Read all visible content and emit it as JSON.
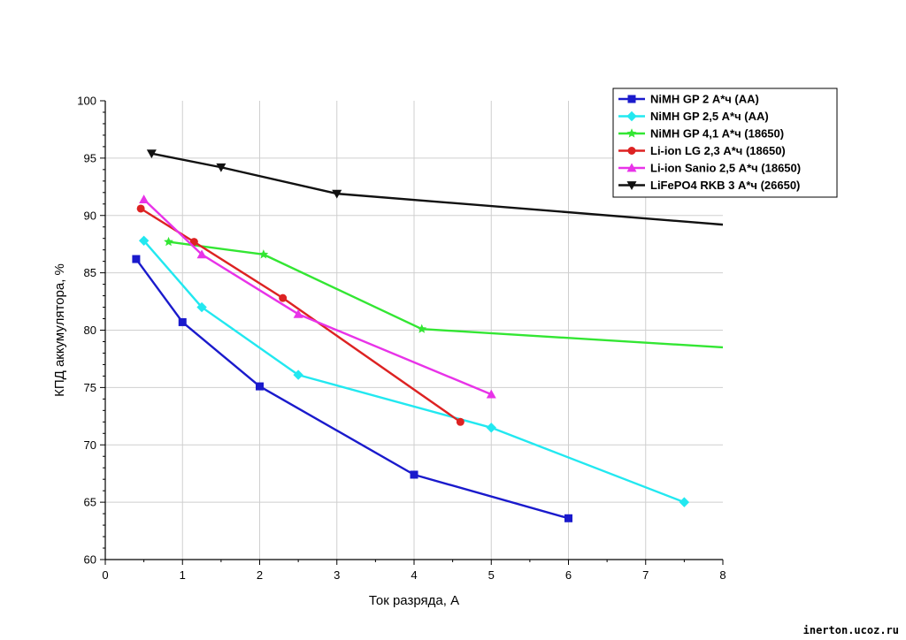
{
  "chart_data": {
    "type": "line",
    "title": "",
    "xlabel": "Ток разряда, А",
    "ylabel": "КПД аккумулятора, %",
    "xlim": [
      0,
      8
    ],
    "ylim": [
      60,
      100
    ],
    "xticks": [
      0,
      1,
      2,
      3,
      4,
      5,
      6,
      7,
      8
    ],
    "yticks": [
      60,
      65,
      70,
      75,
      80,
      85,
      90,
      95,
      100
    ],
    "grid": true,
    "legend_position": "top-right",
    "series": [
      {
        "name": "NiMH GP 2 А*ч (AA)",
        "color": "#1a1acc",
        "marker": "square",
        "x": [
          0.4,
          1.0,
          2.0,
          4.0,
          6.0
        ],
        "y": [
          86.2,
          80.7,
          75.1,
          67.4,
          63.6
        ]
      },
      {
        "name": "NiMH GP 2,5 А*ч (AA)",
        "color": "#22e8f0",
        "marker": "diamond",
        "x": [
          0.5,
          1.25,
          2.5,
          5.0,
          7.5
        ],
        "y": [
          87.8,
          82.0,
          76.1,
          71.5,
          65.0
        ]
      },
      {
        "name": "NiMH GP 4,1 А*ч (18650)",
        "color": "#33e633",
        "marker": "star",
        "x": [
          0.82,
          2.05,
          4.1,
          8.0
        ],
        "y": [
          87.7,
          86.6,
          80.1,
          78.5
        ],
        "marker_count": 3
      },
      {
        "name": "Li-ion LG 2,3 А*ч (18650)",
        "color": "#dd2222",
        "marker": "circle",
        "x": [
          0.46,
          1.15,
          2.3,
          4.6
        ],
        "y": [
          90.6,
          87.7,
          82.8,
          72.0
        ]
      },
      {
        "name": "Li-ion Sanio 2,5 А*ч (18650)",
        "color": "#e833e8",
        "marker": "triangle-up",
        "x": [
          0.5,
          1.25,
          2.5,
          5.0
        ],
        "y": [
          91.4,
          86.6,
          81.4,
          74.4
        ]
      },
      {
        "name": "LiFePO4 RKB 3 А*ч (26650)",
        "color": "#111111",
        "marker": "triangle-down",
        "x": [
          0.6,
          1.5,
          3.0,
          8.0
        ],
        "y": [
          95.4,
          94.2,
          91.9,
          89.2
        ],
        "marker_count": 3
      }
    ]
  },
  "watermark": "inerton.ucoz.ru"
}
